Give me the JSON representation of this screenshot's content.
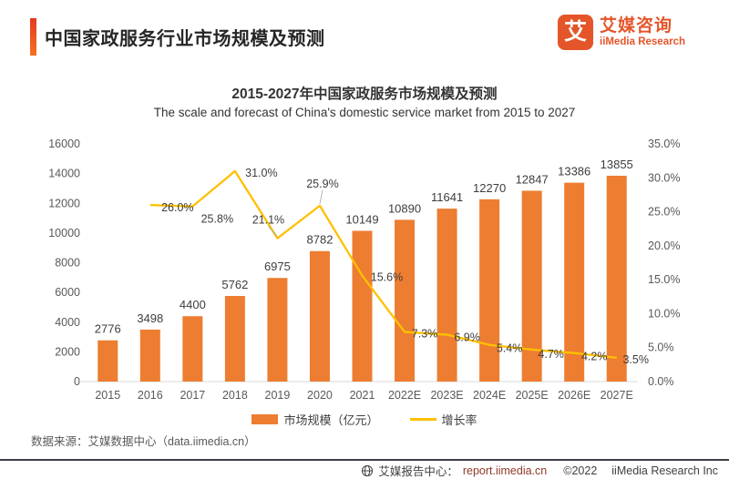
{
  "header": {
    "title": "中国家政服务行业市场规模及预测"
  },
  "logo": {
    "glyph": "艾",
    "name_cn": "艾媒咨询",
    "name_en": "iiMedia Research"
  },
  "chart_data": {
    "type": "bar+line",
    "title": "2015-2027年中国家政服务市场规模及预测",
    "subtitle": "The scale and forecast of China's domestic service market from 2015 to 2027",
    "categories": [
      "2015",
      "2016",
      "2017",
      "2018",
      "2019",
      "2020",
      "2021",
      "2022E",
      "2023E",
      "2024E",
      "2025E",
      "2026E",
      "2027E"
    ],
    "series": [
      {
        "name": "市场规模（亿元）",
        "type": "bar",
        "axis": "left",
        "color": "#ED7D31",
        "values": [
          2776,
          3498,
          4400,
          5762,
          6975,
          8782,
          10149,
          10890,
          11641,
          12270,
          12847,
          13386,
          13855
        ]
      },
      {
        "name": "增长率",
        "type": "line",
        "axis": "right",
        "color": "#FFC000",
        "values": [
          null,
          26.0,
          25.8,
          31.0,
          21.1,
          25.9,
          15.6,
          7.3,
          6.9,
          5.4,
          4.7,
          4.2,
          3.5
        ]
      }
    ],
    "left_axis": {
      "min": 0,
      "max": 16000,
      "step": 2000
    },
    "right_axis": {
      "min": 0,
      "max": 35,
      "step": 5,
      "format": "percent"
    },
    "grid": false,
    "legend_position": "bottom"
  },
  "source": {
    "text": "数据来源：艾媒数据中心（data.iimedia.cn）"
  },
  "footer": {
    "report_label": "艾媒报告中心：",
    "report_url": "report.iimedia.cn",
    "copyright": "©2022",
    "company": "iiMedia Research  Inc"
  },
  "colors": {
    "bar": "#ED7D31",
    "line": "#FFC000",
    "accent": "#e6391b",
    "brand": "#e4552a"
  }
}
